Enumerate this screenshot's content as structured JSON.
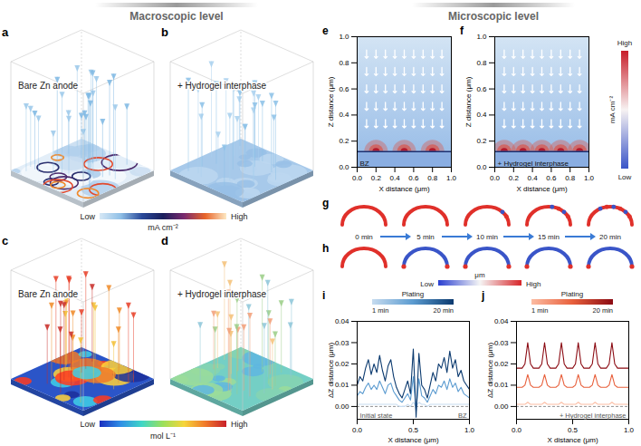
{
  "header": {
    "left": "Macroscopic level",
    "right": "Microscopic level"
  },
  "panels": {
    "a": {
      "letter": "a",
      "label": "Bare Zn anode"
    },
    "b": {
      "letter": "b",
      "label": "+ Hydrogel interphase"
    },
    "c": {
      "letter": "c",
      "label": "Bare Zn anode"
    },
    "d": {
      "letter": "d",
      "label": "+ Hydrogel interphase"
    }
  },
  "colorbars": {
    "current_3d": {
      "low": "Low",
      "high": "High",
      "unit": "mA cm⁻²"
    },
    "concentration": {
      "low": "Low",
      "high": "High",
      "unit": "mol L⁻¹"
    },
    "current_2d": {
      "low": "Low",
      "high": "High",
      "unit": "mA cm⁻²"
    },
    "height": {
      "low": "Low",
      "high": "High",
      "unit": "μm"
    }
  },
  "morphology": {
    "rows": [
      {
        "letter": "g"
      },
      {
        "letter": "h"
      }
    ],
    "times": [
      "0 min",
      "5 min",
      "10 min",
      "15 min",
      "20 min"
    ]
  },
  "chart_data": [
    {
      "type": "heatmap",
      "panel": "e",
      "label": "BZ",
      "x_label": "X distance (μm)",
      "y_label": "Z distance (μm)",
      "xlim": [
        0,
        1
      ],
      "ylim": [
        0,
        1
      ],
      "xticks": [
        {
          "value": 0,
          "label": "0.0"
        },
        {
          "value": 0.2,
          "label": "0.2"
        },
        {
          "value": 0.4,
          "label": "0.4"
        },
        {
          "value": 0.6,
          "label": "0.6"
        },
        {
          "value": 0.8,
          "label": "0.8"
        },
        {
          "value": 1,
          "label": "1.0"
        }
      ],
      "yticks": [
        {
          "value": 0,
          "label": "0.0"
        },
        {
          "value": 0.2,
          "label": "0.2"
        },
        {
          "value": 0.4,
          "label": "0.4"
        },
        {
          "value": 0.6,
          "label": "0.6"
        },
        {
          "value": 0.8,
          "label": "0.8"
        },
        {
          "value": 1,
          "label": "1.0"
        }
      ],
      "electrode_z": 0.12,
      "hotspots": [
        0.2,
        0.5,
        0.8
      ]
    },
    {
      "type": "heatmap",
      "panel": "f",
      "label": "+ Hydrogel interphase",
      "x_label": "X distance (μm)",
      "y_label": "Z distance (μm)",
      "xlim": [
        0,
        1
      ],
      "ylim": [
        0,
        1
      ],
      "xticks": [
        {
          "value": 0,
          "label": "0.0"
        },
        {
          "value": 0.2,
          "label": "0.2"
        },
        {
          "value": 0.4,
          "label": "0.4"
        },
        {
          "value": 0.6,
          "label": "0.6"
        },
        {
          "value": 0.8,
          "label": "0.8"
        },
        {
          "value": 1,
          "label": "1.0"
        }
      ],
      "yticks": [
        {
          "value": 0,
          "label": "0.0"
        },
        {
          "value": 0.2,
          "label": "0.2"
        },
        {
          "value": 0.4,
          "label": "0.4"
        },
        {
          "value": 0.6,
          "label": "0.6"
        },
        {
          "value": 0.8,
          "label": "0.8"
        },
        {
          "value": 1,
          "label": "1.0"
        }
      ],
      "electrode_z": 0.12,
      "hotspots": [
        0.1,
        0.3,
        0.5,
        0.7,
        0.9
      ]
    },
    {
      "type": "line",
      "panel": "i",
      "x_label": "X distance (μm)",
      "y_label": "ΔZ distance (μm)",
      "xlim": [
        0,
        1
      ],
      "ylim": [
        -0.006,
        0.04
      ],
      "xticks": [
        {
          "value": 0,
          "label": "0.0"
        },
        {
          "value": 0.5,
          "label": "0.5"
        },
        {
          "value": 1,
          "label": "1.0"
        }
      ],
      "yticks": [
        {
          "value": 0,
          "label": "0.00"
        },
        {
          "value": 0.01,
          "label": "0.01"
        },
        {
          "value": 0.02,
          "label": "0.02"
        },
        {
          "value": 0.03,
          "label": "0.03"
        },
        {
          "value": 0.04,
          "label": "0.04"
        }
      ],
      "legend": "top",
      "legend_title": "Plating",
      "legend_labels": [
        "1 min",
        "20 min"
      ],
      "baseline": 0,
      "annotations": [
        "Initial state",
        "BZ"
      ],
      "x": [
        0,
        0.025,
        0.05,
        0.075,
        0.1,
        0.125,
        0.15,
        0.175,
        0.2,
        0.225,
        0.25,
        0.275,
        0.3,
        0.325,
        0.35,
        0.375,
        0.4,
        0.425,
        0.45,
        0.475,
        0.5,
        0.525,
        0.55,
        0.575,
        0.6,
        0.625,
        0.65,
        0.675,
        0.7,
        0.725,
        0.75,
        0.775,
        0.8,
        0.825,
        0.85,
        0.875,
        0.9,
        0.925,
        0.95,
        0.975,
        1
      ],
      "series": [
        {
          "color": "#c6dbef",
          "values": [
            0.001,
            0.001,
            0.001,
            0.001,
            0.001,
            0.001,
            0.001,
            0.001,
            0.001,
            0.001,
            0.001,
            0.001,
            0.001,
            0.001,
            0.001,
            0,
            0,
            0,
            0.001,
            0,
            0.002,
            0,
            0.002,
            0.001,
            0.001,
            0,
            0.001,
            0.001,
            0.001,
            0.001,
            0.001,
            0.001,
            0.001,
            0.001,
            0.001,
            0.001,
            0.001,
            0.001,
            0.001,
            0.001,
            0.001
          ]
        },
        {
          "color": "#5b9bd0",
          "values": [
            0.005,
            0.007,
            0.006,
            0.009,
            0.011,
            0.008,
            0.01,
            0.008,
            0.012,
            0.009,
            0.006,
            0.01,
            0.011,
            0.007,
            0.005,
            0.003,
            0.002,
            0.004,
            0.006,
            0.003,
            0.014,
            -0.002,
            0.013,
            0.005,
            0.004,
            0.002,
            0.005,
            0.008,
            0.006,
            0.01,
            0.009,
            0.012,
            0.008,
            0.013,
            0.009,
            0.011,
            0.007,
            0.009,
            0.006,
            0.005,
            0.004
          ]
        },
        {
          "color": "#0b3a6f",
          "values": [
            0.01,
            0.014,
            0.012,
            0.018,
            0.022,
            0.015,
            0.02,
            0.016,
            0.024,
            0.017,
            0.012,
            0.019,
            0.022,
            0.014,
            0.009,
            0.006,
            0.004,
            0.008,
            0.012,
            0.006,
            0.027,
            -0.005,
            0.025,
            0.01,
            0.008,
            0.004,
            0.01,
            0.016,
            0.012,
            0.02,
            0.018,
            0.023,
            0.016,
            0.026,
            0.018,
            0.022,
            0.014,
            0.017,
            0.012,
            0.01,
            0.008
          ]
        }
      ]
    },
    {
      "type": "line",
      "panel": "j",
      "x_label": "X distance (μm)",
      "y_label": "ΔZ distance (μm)",
      "xlim": [
        0,
        1
      ],
      "ylim": [
        -0.006,
        0.04
      ],
      "xticks": [
        {
          "value": 0,
          "label": "0.0"
        },
        {
          "value": 0.5,
          "label": "0.5"
        },
        {
          "value": 1,
          "label": "1.0"
        }
      ],
      "yticks": [
        {
          "value": 0,
          "label": "0.00"
        },
        {
          "value": 0.01,
          "label": "0.01"
        },
        {
          "value": 0.02,
          "label": "0.02"
        },
        {
          "value": 0.03,
          "label": "0.03"
        },
        {
          "value": 0.04,
          "label": "0.04"
        }
      ],
      "legend": "top",
      "legend_title": "Plating",
      "legend_labels": [
        "1 min",
        "20 min"
      ],
      "baseline": 0,
      "annotations": [
        "+ Hydrogel interphase"
      ],
      "x": [
        0,
        0.025,
        0.05,
        0.075,
        0.1,
        0.125,
        0.15,
        0.175,
        0.2,
        0.225,
        0.25,
        0.275,
        0.3,
        0.325,
        0.35,
        0.375,
        0.4,
        0.425,
        0.45,
        0.475,
        0.5,
        0.525,
        0.55,
        0.575,
        0.6,
        0.625,
        0.65,
        0.675,
        0.7,
        0.725,
        0.75,
        0.775,
        0.8,
        0.825,
        0.85,
        0.875,
        0.9,
        0.925,
        0.95,
        0.975,
        1
      ],
      "series": [
        {
          "color": "#fcbba1",
          "values": [
            0.001,
            0.001,
            0.001,
            0.001,
            0.002,
            0.001,
            0.001,
            0.001,
            0.001,
            0.001,
            0.002,
            0.001,
            0.001,
            0.001,
            0.001,
            0.001,
            0.002,
            0.001,
            0.001,
            0.001,
            0.001,
            0.001,
            0.002,
            0.001,
            0.001,
            0.001,
            0.001,
            0.001,
            0.002,
            0.001,
            0.001,
            0.001,
            0.001,
            0.001,
            0.002,
            0.001,
            0.001,
            0.001,
            0.001,
            0.001,
            0.001
          ]
        },
        {
          "color": "#e8603c",
          "values": [
            0.009,
            0.009,
            0.009,
            0.01,
            0.015,
            0.01,
            0.009,
            0.009,
            0.009,
            0.01,
            0.015,
            0.01,
            0.009,
            0.009,
            0.009,
            0.01,
            0.015,
            0.01,
            0.009,
            0.009,
            0.009,
            0.01,
            0.015,
            0.01,
            0.009,
            0.009,
            0.009,
            0.01,
            0.015,
            0.01,
            0.009,
            0.009,
            0.009,
            0.01,
            0.015,
            0.01,
            0.009,
            0.009,
            0.009,
            0.009,
            0.009
          ]
        },
        {
          "color": "#8b0a12",
          "values": [
            0.018,
            0.018,
            0.018,
            0.02,
            0.03,
            0.02,
            0.018,
            0.018,
            0.018,
            0.02,
            0.03,
            0.02,
            0.018,
            0.018,
            0.018,
            0.02,
            0.03,
            0.02,
            0.018,
            0.018,
            0.018,
            0.02,
            0.03,
            0.02,
            0.018,
            0.018,
            0.018,
            0.02,
            0.03,
            0.02,
            0.018,
            0.018,
            0.018,
            0.02,
            0.03,
            0.02,
            0.018,
            0.018,
            0.018,
            0.018,
            0.018
          ]
        }
      ]
    }
  ]
}
